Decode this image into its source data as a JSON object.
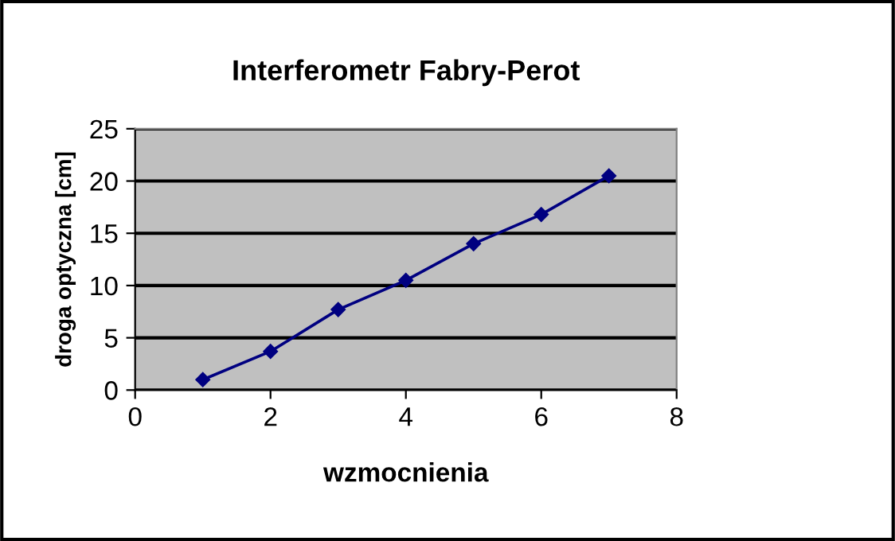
{
  "chart_data": {
    "type": "line",
    "title": "Interferometr Fabry-Perot",
    "xlabel": "wzmocnienia",
    "ylabel": "droga optyczna [cm]",
    "x": [
      1,
      2,
      3,
      4,
      5,
      6,
      7
    ],
    "series": [
      {
        "color": "#000080",
        "values": [
          1.0,
          3.7,
          7.7,
          10.5,
          14.0,
          16.8,
          20.5
        ]
      }
    ],
    "xlim": [
      0,
      8
    ],
    "xticks": [
      0,
      2,
      4,
      6,
      8
    ],
    "ylim": [
      0,
      25
    ],
    "yticks": [
      0,
      5,
      10,
      15,
      20,
      25
    ],
    "grid": "y",
    "marker": "diamond",
    "line_style": "solid"
  }
}
